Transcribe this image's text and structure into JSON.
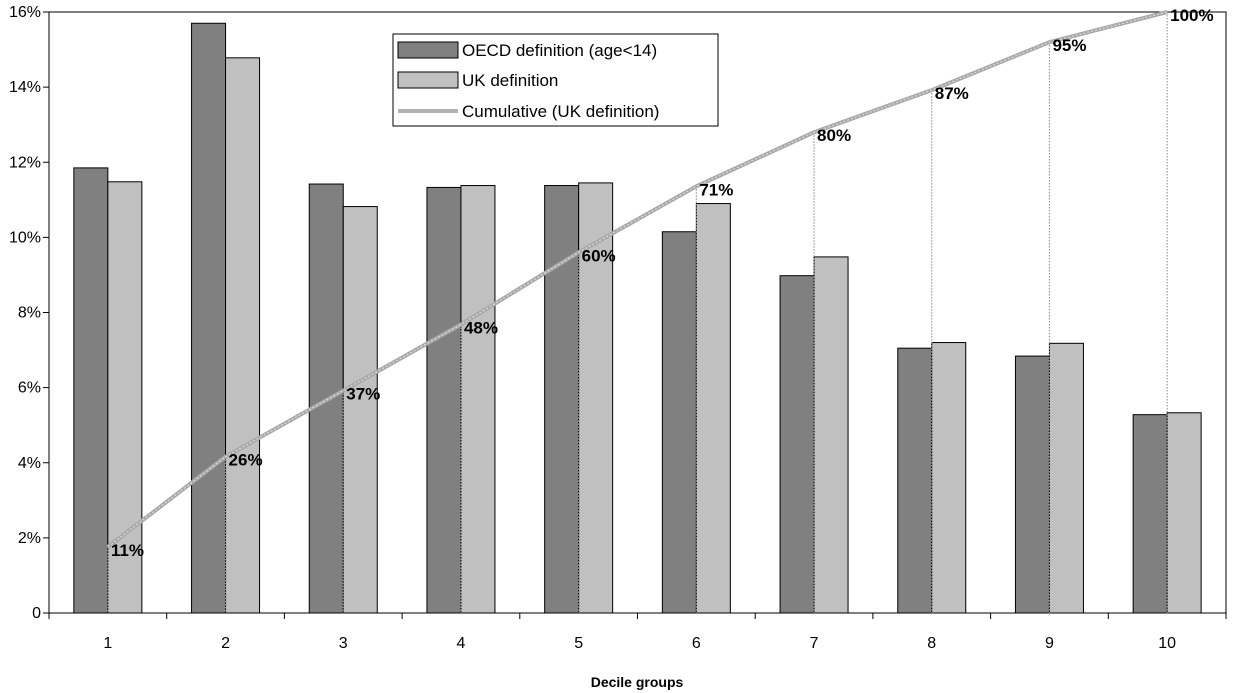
{
  "chart_data": {
    "type": "bar",
    "categories": [
      "1",
      "2",
      "3",
      "4",
      "5",
      "6",
      "7",
      "8",
      "9",
      "10"
    ],
    "series": [
      {
        "name": "OECD definition (age<14)",
        "type": "bar",
        "color": "#808080",
        "values": [
          11.85,
          15.7,
          11.42,
          11.33,
          11.38,
          10.15,
          8.98,
          7.05,
          6.84,
          5.28
        ]
      },
      {
        "name": "UK definition",
        "type": "bar",
        "color": "#c0c0c0",
        "values": [
          11.48,
          14.78,
          10.82,
          11.38,
          11.45,
          10.9,
          9.48,
          7.2,
          7.18,
          5.33
        ]
      },
      {
        "name": "Cumulative (UK definition)",
        "type": "line",
        "color": "#b0b0b0",
        "values": [
          11,
          26,
          37,
          48,
          60,
          71,
          80,
          87,
          95,
          100
        ],
        "labels": [
          "11%",
          "26%",
          "37%",
          "48%",
          "60%",
          "71%",
          "80%",
          "87%",
          "95%",
          "100%"
        ]
      }
    ],
    "y_ticks": [
      "0",
      "2%",
      "4%",
      "6%",
      "8%",
      "10%",
      "12%",
      "14%",
      "16%"
    ],
    "ylim": [
      0,
      16
    ],
    "cumulative_ylim": [
      0,
      100
    ],
    "xlabel": "Decile groups",
    "ylabel": "",
    "title": "",
    "grid": false,
    "legend_position": "top-center"
  }
}
